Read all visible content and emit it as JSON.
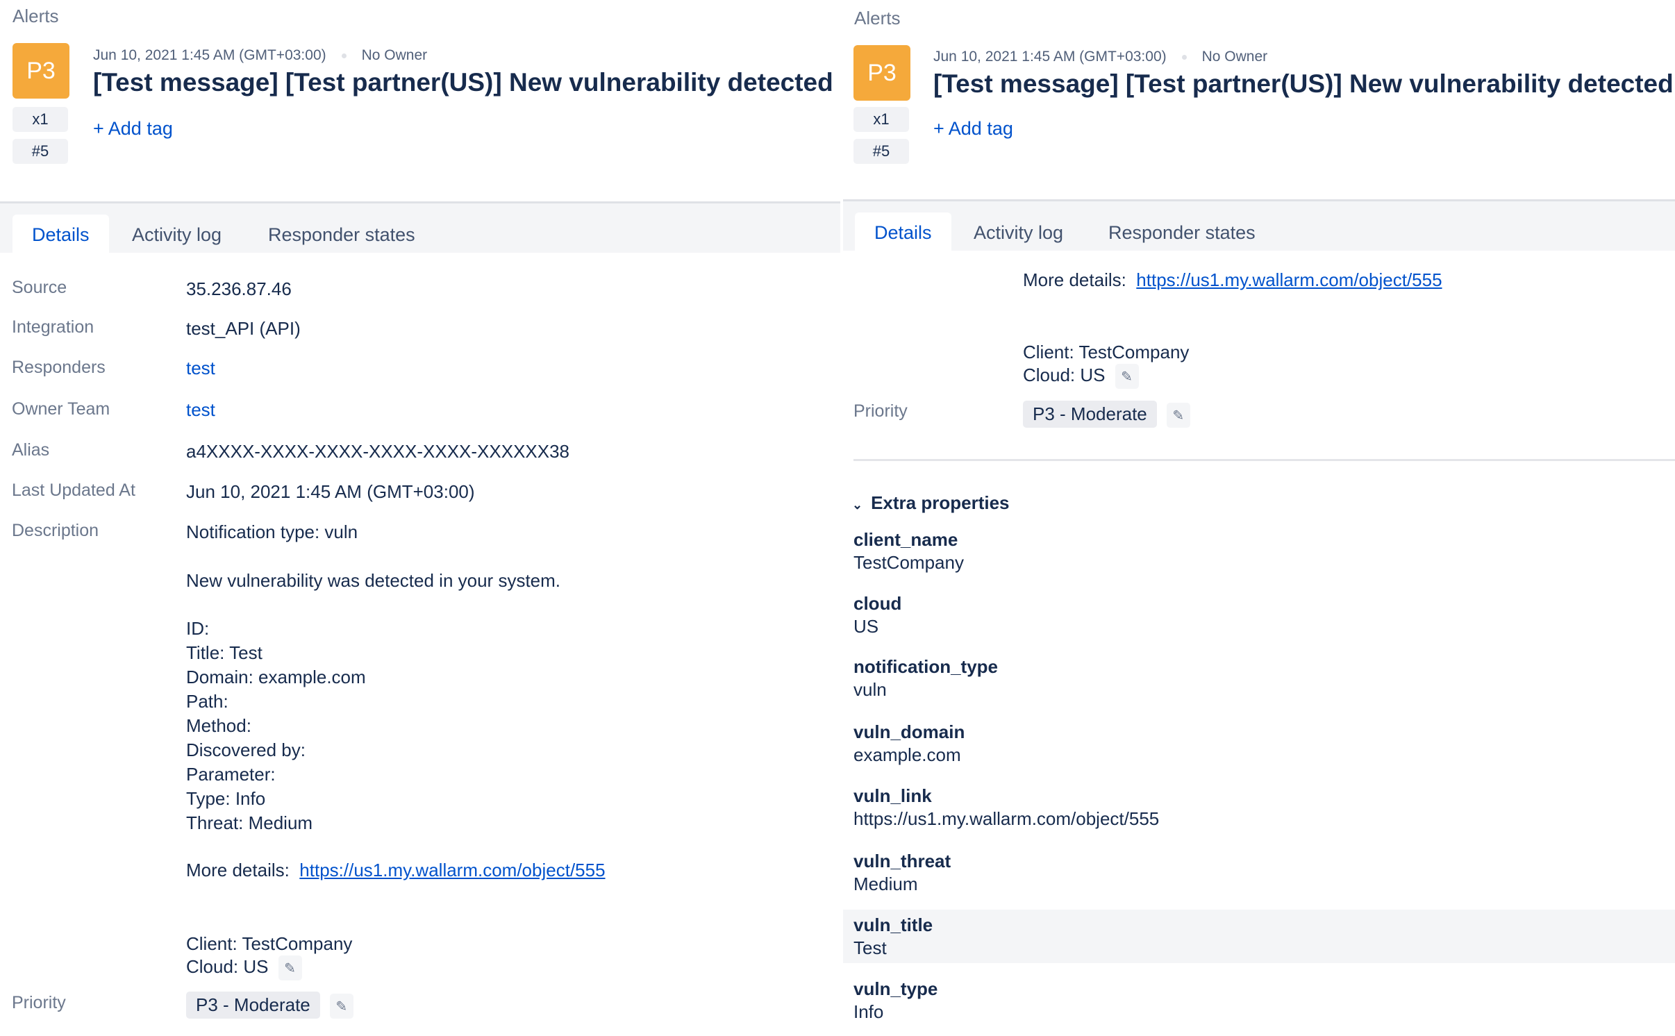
{
  "header": {
    "breadcrumb": "Alerts",
    "priority": "P3",
    "count": "x1",
    "number": "#5",
    "date": "Jun 10, 2021 1:45 AM (GMT+03:00)",
    "owner": "No Owner",
    "title": "[Test message] [Test partner(US)] New vulnerability detected",
    "add_tag": "+ Add tag"
  },
  "tabs": [
    {
      "label": "Details",
      "active": true
    },
    {
      "label": "Activity log"
    },
    {
      "label": "Responder states"
    }
  ],
  "details": {
    "source_label": "Source",
    "source": "35.236.87.46",
    "integration_label": "Integration",
    "integration": "test_API (API)",
    "responders_label": "Responders",
    "responders": "test",
    "owner_team_label": "Owner Team",
    "owner_team": "test",
    "alias_label": "Alias",
    "alias": "a4XXXX-XXXX-XXXX-XXXX-XXXX-XXXXXX38",
    "updated_label": "Last Updated At",
    "updated": "Jun 10, 2021 1:45 AM (GMT+03:00)",
    "description_label": "Description",
    "description_lines": [
      "Notification type: vuln",
      "New vulnerability was detected in your system.",
      "ID:",
      "Title: Test",
      "Domain: example.com",
      "Path:",
      "Method:",
      "Discovered by:",
      "Parameter:",
      "Type: Info",
      "Threat: Medium"
    ],
    "more_details_label": "More details:",
    "more_details_url": "https://us1.my.wallarm.com/object/555",
    "client": "Client: TestCompany",
    "cloud": "Cloud: US",
    "priority_label": "Priority",
    "priority": "P3 - Moderate"
  },
  "extra": {
    "label": "Extra properties",
    "props": [
      {
        "name": "client_name",
        "value": "TestCompany"
      },
      {
        "name": "cloud",
        "value": "US"
      },
      {
        "name": "notification_type",
        "value": "vuln"
      },
      {
        "name": "vuln_domain",
        "value": "example.com"
      },
      {
        "name": "vuln_link",
        "value": "https://us1.my.wallarm.com/object/555"
      },
      {
        "name": "vuln_threat",
        "value": "Medium"
      },
      {
        "name": "vuln_title",
        "value": "Test"
      },
      {
        "name": "vuln_type",
        "value": "Info"
      }
    ]
  },
  "colors": {
    "priority": "#f5a93b",
    "link": "#0052cc",
    "text": "#172b4d"
  }
}
